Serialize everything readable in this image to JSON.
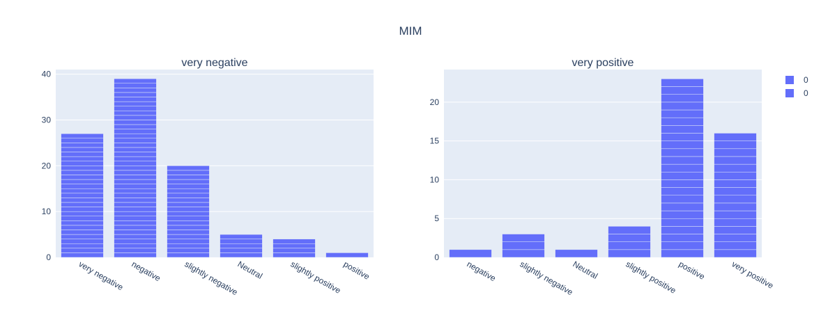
{
  "title": "MIM",
  "colors": {
    "bar": "#636efa",
    "bar_stroke": "#e5ecf6",
    "plot_bg": "#e5ecf6",
    "text": "#2a3f5f"
  },
  "legend": {
    "placement": "top-right",
    "items": [
      {
        "label": "0"
      },
      {
        "label": "0"
      }
    ]
  },
  "chart_data": [
    {
      "type": "bar",
      "title": "very negative",
      "categories": [
        "very negative",
        "negative",
        "slightly negative",
        "Neutral",
        "slightly positive",
        "positive"
      ],
      "series": [
        {
          "name": "0",
          "values": [
            27,
            39,
            20,
            5,
            4,
            1
          ]
        }
      ],
      "ylim": [
        0,
        41
      ],
      "yticks": [
        0,
        10,
        20,
        30,
        40
      ],
      "grid": true
    },
    {
      "type": "bar",
      "title": "very positive",
      "categories": [
        "negative",
        "slightly negative",
        "Neutral",
        "slightly positive",
        "positive",
        "very positive"
      ],
      "series": [
        {
          "name": "0",
          "values": [
            1,
            3,
            1,
            4,
            23,
            16
          ]
        }
      ],
      "ylim": [
        0,
        24.2
      ],
      "yticks": [
        0,
        5,
        10,
        15,
        20
      ],
      "grid": true
    }
  ]
}
